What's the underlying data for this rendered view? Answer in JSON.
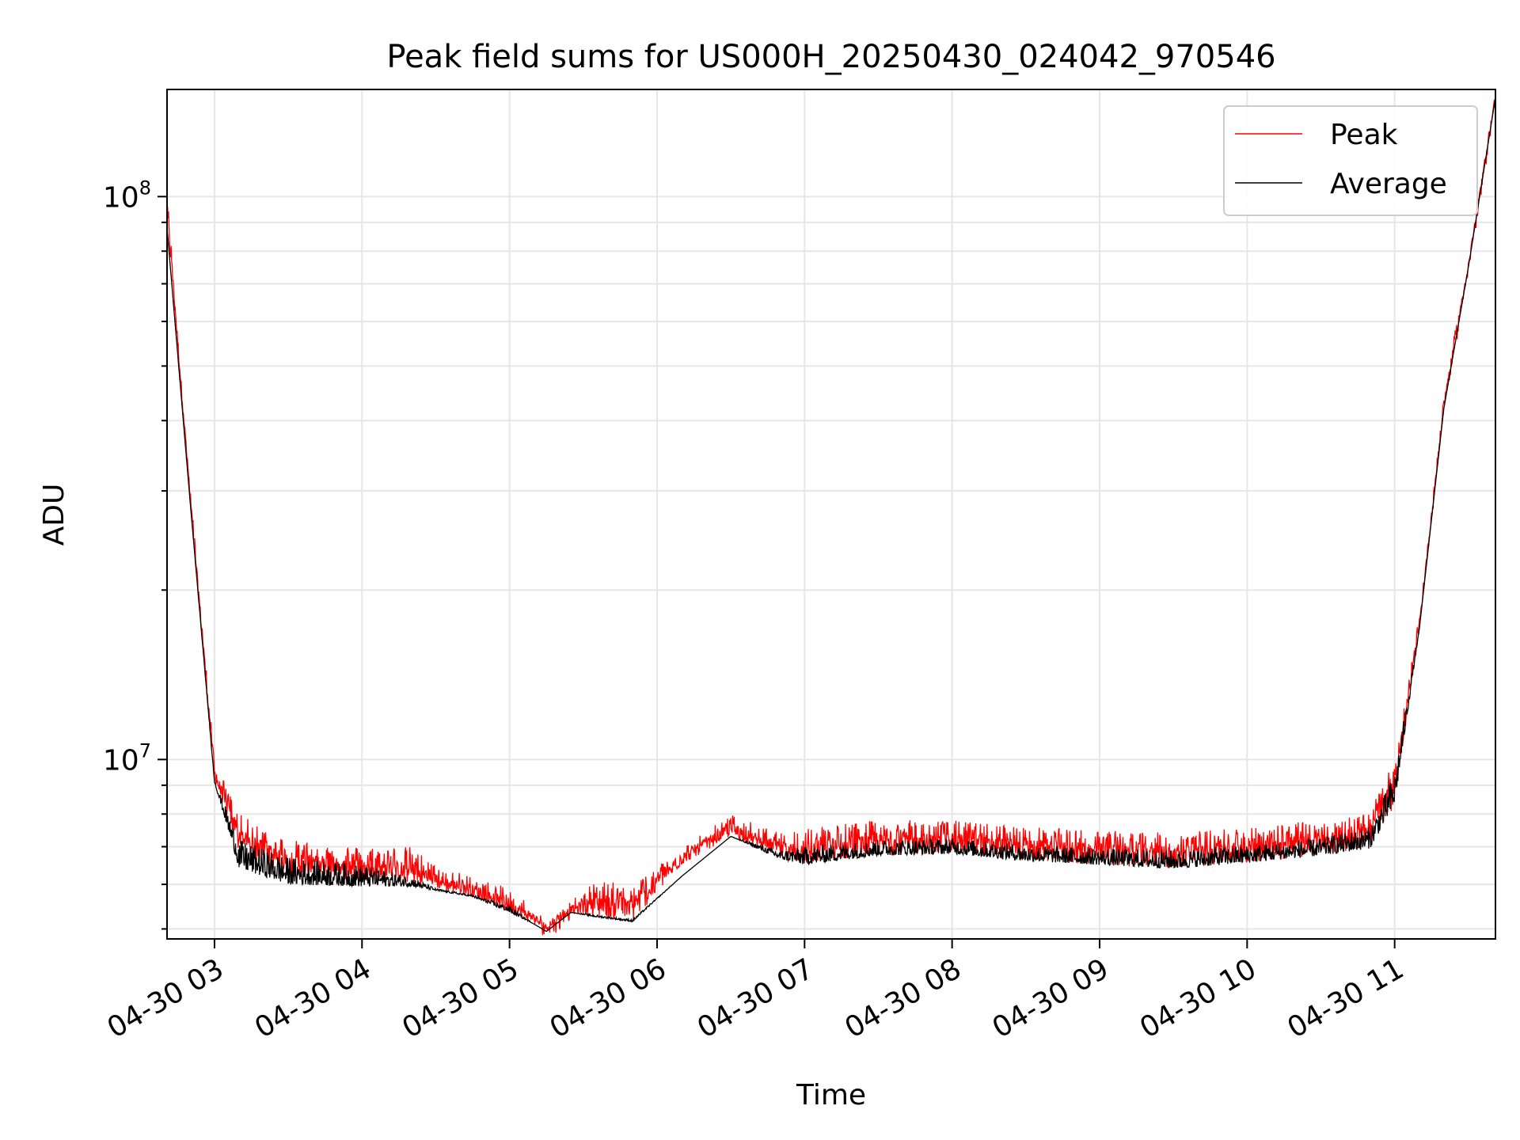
{
  "chart_data": {
    "type": "line",
    "title": "Peak field sums for US000H_20250430_024042_970546",
    "xlabel": "Time",
    "ylabel": "ADU",
    "y_scale": "log",
    "ylim": [
      4800000,
      155000000
    ],
    "xlim": [
      "2025-04-30 02:40:42",
      "2025-04-30 11:41:00"
    ],
    "grid": true,
    "legend_position": "top-right",
    "x_ticks": [
      {
        "value": "2025-04-30 03:00",
        "label": "04-30 03"
      },
      {
        "value": "2025-04-30 04:00",
        "label": "04-30 04"
      },
      {
        "value": "2025-04-30 05:00",
        "label": "04-30 05"
      },
      {
        "value": "2025-04-30 06:00",
        "label": "04-30 06"
      },
      {
        "value": "2025-04-30 07:00",
        "label": "04-30 07"
      },
      {
        "value": "2025-04-30 08:00",
        "label": "04-30 08"
      },
      {
        "value": "2025-04-30 09:00",
        "label": "04-30 09"
      },
      {
        "value": "2025-04-30 10:00",
        "label": "04-30 10"
      },
      {
        "value": "2025-04-30 11:00",
        "label": "04-30 11"
      }
    ],
    "y_ticks": [
      {
        "value": 10000000,
        "base": "10",
        "exp": "7"
      },
      {
        "value": 100000000,
        "base": "10",
        "exp": "8"
      }
    ],
    "x": [
      "2025-04-30 02:40:42",
      "2025-04-30 02:50",
      "2025-04-30 03:00",
      "2025-04-30 03:10",
      "2025-04-30 03:30",
      "2025-04-30 04:00",
      "2025-04-30 04:20",
      "2025-04-30 04:30",
      "2025-04-30 04:45",
      "2025-04-30 05:00",
      "2025-04-30 05:10",
      "2025-04-30 05:15",
      "2025-04-30 05:25",
      "2025-04-30 05:35",
      "2025-04-30 05:50",
      "2025-04-30 06:10",
      "2025-04-30 06:30",
      "2025-04-30 06:50",
      "2025-04-30 07:00",
      "2025-04-30 07:30",
      "2025-04-30 08:00",
      "2025-04-30 08:30",
      "2025-04-30 09:00",
      "2025-04-30 09:30",
      "2025-04-30 10:00",
      "2025-04-30 10:30",
      "2025-04-30 10:50",
      "2025-04-30 11:00",
      "2025-04-30 11:10",
      "2025-04-30 11:20",
      "2025-04-30 11:30",
      "2025-04-30 11:41:00"
    ],
    "series": [
      {
        "name": "Peak",
        "color": "#ff0000",
        "values": [
          103000000,
          31000000,
          10000000,
          8000000,
          7200000,
          7000000,
          7000000,
          6500000,
          6200000,
          5900000,
          5500000,
          5200000,
          5600000,
          6100000,
          6000000,
          7000000,
          8000000,
          7400000,
          7600000,
          7800000,
          7800000,
          7600000,
          7500000,
          7400000,
          7600000,
          7800000,
          8100000,
          10000000,
          18000000,
          45000000,
          78000000,
          155000000
        ],
        "min_values": [
          92000000,
          29000000,
          9200000,
          6800000,
          6200000,
          6100000,
          6000000,
          5900000,
          5700000,
          5350000,
          5100000,
          4950000,
          5350000,
          5250000,
          5150000,
          6500000,
          7300000,
          6700000,
          6500000,
          6750000,
          6800000,
          6600000,
          6500000,
          6400000,
          6550000,
          6750000,
          6950000,
          8300000,
          17000000,
          42000000,
          75000000,
          150000000
        ]
      },
      {
        "name": "Average",
        "color": "#000000",
        "values": [
          88000000,
          29000000,
          9200000,
          7200000,
          6700000,
          6500000,
          6200000,
          5900000,
          5750000,
          5500000,
          5100000,
          4950000,
          5350000,
          5300000,
          5200000,
          6200000,
          7300000,
          6900000,
          7000000,
          7200000,
          7250000,
          7050000,
          6950000,
          6900000,
          7050000,
          7250000,
          7600000,
          9500000,
          17000000,
          42000000,
          75000000,
          150000000
        ],
        "min_values": [
          88000000,
          29000000,
          9100000,
          6400000,
          6000000,
          5950000,
          5950000,
          5850000,
          5700000,
          5350000,
          5100000,
          4950000,
          5350000,
          5250000,
          5150000,
          6200000,
          7300000,
          6650000,
          6500000,
          6750000,
          6800000,
          6600000,
          6500000,
          6400000,
          6550000,
          6750000,
          6950000,
          8300000,
          17000000,
          42000000,
          75000000,
          150000000
        ]
      }
    ]
  }
}
